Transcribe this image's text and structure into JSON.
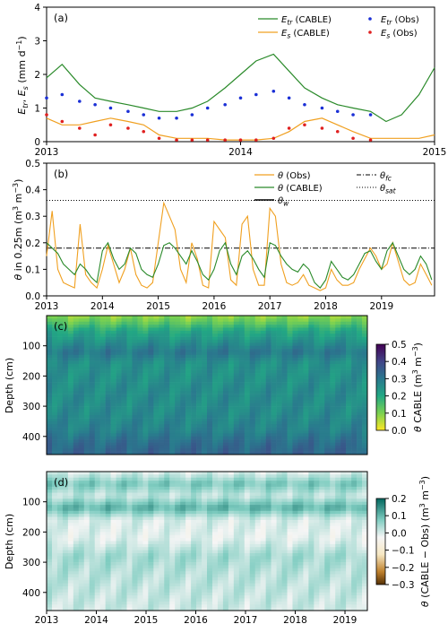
{
  "chart_data": [
    {
      "type": "line",
      "panel_label": "(a)",
      "ylabel": "E_tr, E_s (mm d^-1)",
      "ylim": [
        0,
        4
      ],
      "yticks": [
        0,
        1,
        2,
        3,
        4
      ],
      "xlim": [
        2013,
        2015
      ],
      "xticks": [
        "2013",
        "2014",
        "2015"
      ],
      "legend_position": "top-right",
      "colors": {
        "etr_cable": "#2a8a2a",
        "es_cable": "#f0a020",
        "etr_obs": "#1a2fd6",
        "es_obs": "#e02020"
      },
      "legend": [
        "E_tr (CABLE)",
        "E_s (CABLE)",
        "E_tr (Obs)",
        "E_s (Obs)"
      ],
      "series": [
        {
          "name": "E_tr (CABLE)",
          "style": "line",
          "x": [
            2013.0,
            2013.08,
            2013.17,
            2013.25,
            2013.33,
            2013.42,
            2013.5,
            2013.58,
            2013.67,
            2013.75,
            2013.83,
            2013.92,
            2014.0,
            2014.08,
            2014.17,
            2014.25,
            2014.33,
            2014.42,
            2014.5,
            2014.58,
            2014.67,
            2014.75,
            2014.83,
            2014.92,
            2015.0
          ],
          "values": [
            1.9,
            2.3,
            1.7,
            1.3,
            1.2,
            1.1,
            1.0,
            0.9,
            0.9,
            1.0,
            1.2,
            1.6,
            2.0,
            2.4,
            2.6,
            2.1,
            1.6,
            1.3,
            1.1,
            1.0,
            0.9,
            0.6,
            0.8,
            1.4,
            2.2
          ]
        },
        {
          "name": "E_s (CABLE)",
          "style": "line",
          "x": [
            2013.0,
            2013.08,
            2013.17,
            2013.25,
            2013.33,
            2013.42,
            2013.5,
            2013.58,
            2013.67,
            2013.75,
            2013.83,
            2013.92,
            2014.0,
            2014.08,
            2014.17,
            2014.25,
            2014.33,
            2014.42,
            2014.5,
            2014.58,
            2014.67,
            2014.75,
            2014.83,
            2014.92,
            2015.0
          ],
          "values": [
            0.7,
            0.5,
            0.5,
            0.6,
            0.7,
            0.6,
            0.5,
            0.2,
            0.1,
            0.1,
            0.1,
            0.05,
            0.05,
            0.05,
            0.1,
            0.3,
            0.6,
            0.7,
            0.5,
            0.3,
            0.1,
            0.1,
            0.1,
            0.1,
            0.2
          ]
        },
        {
          "name": "E_tr (Obs)",
          "style": "points",
          "x": [
            2013.0,
            2013.08,
            2013.17,
            2013.25,
            2013.33,
            2013.42,
            2013.5,
            2013.58,
            2013.67,
            2013.75,
            2013.83,
            2013.92,
            2014.0,
            2014.08,
            2014.17,
            2014.25,
            2014.33,
            2014.42,
            2014.5,
            2014.58,
            2014.67
          ],
          "values": [
            1.3,
            1.4,
            1.2,
            1.1,
            1.0,
            0.9,
            0.8,
            0.7,
            0.7,
            0.8,
            1.0,
            1.1,
            1.3,
            1.4,
            1.5,
            1.3,
            1.1,
            1.0,
            0.9,
            0.8,
            0.8
          ]
        },
        {
          "name": "E_s (Obs)",
          "style": "points",
          "x": [
            2013.0,
            2013.08,
            2013.17,
            2013.25,
            2013.33,
            2013.42,
            2013.5,
            2013.58,
            2013.67,
            2013.75,
            2013.83,
            2013.92,
            2014.0,
            2014.08,
            2014.17,
            2014.25,
            2014.33,
            2014.42,
            2014.5,
            2014.58,
            2014.67
          ],
          "values": [
            0.8,
            0.6,
            0.4,
            0.2,
            0.5,
            0.4,
            0.3,
            0.1,
            0.05,
            0.05,
            0.05,
            0.05,
            0.05,
            0.05,
            0.1,
            0.4,
            0.5,
            0.4,
            0.3,
            0.1,
            0.05
          ]
        }
      ]
    },
    {
      "type": "line",
      "panel_label": "(b)",
      "ylabel": "θ in 0.25m (m^3 m^-3)",
      "ylim": [
        0,
        0.5
      ],
      "yticks": [
        0.0,
        0.1,
        0.2,
        0.3,
        0.4,
        0.5
      ],
      "xlim": [
        2013,
        2019.95
      ],
      "xticks": [
        "2013",
        "2014",
        "2015",
        "2016",
        "2017",
        "2018",
        "2019"
      ],
      "legend_position": "top-right",
      "colors": {
        "obs": "#f0a020",
        "cable": "#2a8a2a",
        "ref": "#000000"
      },
      "legend": [
        "θ (Obs)",
        "θ (CABLE)",
        "θ_w",
        "θ_fc",
        "θ_sat"
      ],
      "reference_lines": {
        "θ_fc": 0.18,
        "θ_sat": 0.36
      },
      "series": [
        {
          "name": "θ (Obs)",
          "x": [
            2013.0,
            2013.1,
            2013.2,
            2013.3,
            2013.4,
            2013.5,
            2013.6,
            2013.7,
            2013.8,
            2013.9,
            2014.0,
            2014.1,
            2014.2,
            2014.3,
            2014.4,
            2014.5,
            2014.6,
            2014.7,
            2014.8,
            2014.9,
            2015.0,
            2015.1,
            2015.2,
            2015.3,
            2015.4,
            2015.5,
            2015.6,
            2015.7,
            2015.8,
            2015.9,
            2016.0,
            2016.1,
            2016.2,
            2016.3,
            2016.4,
            2016.5,
            2016.6,
            2016.7,
            2016.8,
            2016.9,
            2017.0,
            2017.1,
            2017.2,
            2017.3,
            2017.4,
            2017.5,
            2017.6,
            2017.7,
            2017.8,
            2017.9,
            2018.0,
            2018.1,
            2018.2,
            2018.3,
            2018.4,
            2018.5,
            2018.6,
            2018.7,
            2018.8,
            2018.9,
            2019.0,
            2019.1,
            2019.2,
            2019.3,
            2019.4,
            2019.5,
            2019.6,
            2019.7,
            2019.8,
            2019.9
          ],
          "values": [
            0.15,
            0.32,
            0.1,
            0.05,
            0.04,
            0.03,
            0.27,
            0.08,
            0.05,
            0.03,
            0.1,
            0.19,
            0.12,
            0.05,
            0.1,
            0.18,
            0.08,
            0.04,
            0.03,
            0.05,
            0.2,
            0.35,
            0.3,
            0.25,
            0.1,
            0.05,
            0.2,
            0.14,
            0.04,
            0.03,
            0.28,
            0.25,
            0.22,
            0.06,
            0.04,
            0.27,
            0.3,
            0.1,
            0.04,
            0.04,
            0.33,
            0.3,
            0.12,
            0.05,
            0.04,
            0.05,
            0.08,
            0.04,
            0.03,
            0.02,
            0.03,
            0.1,
            0.06,
            0.04,
            0.04,
            0.05,
            0.1,
            0.14,
            0.18,
            0.15,
            0.1,
            0.12,
            0.2,
            0.13,
            0.06,
            0.04,
            0.05,
            0.12,
            0.08,
            0.04
          ]
        },
        {
          "name": "θ (CABLE)",
          "x": [
            2013.0,
            2013.1,
            2013.2,
            2013.3,
            2013.4,
            2013.5,
            2013.6,
            2013.7,
            2013.8,
            2013.9,
            2014.0,
            2014.1,
            2014.2,
            2014.3,
            2014.4,
            2014.5,
            2014.6,
            2014.7,
            2014.8,
            2014.9,
            2015.0,
            2015.1,
            2015.2,
            2015.3,
            2015.4,
            2015.5,
            2015.6,
            2015.7,
            2015.8,
            2015.9,
            2016.0,
            2016.1,
            2016.2,
            2016.3,
            2016.4,
            2016.5,
            2016.6,
            2016.7,
            2016.8,
            2016.9,
            2017.0,
            2017.1,
            2017.2,
            2017.3,
            2017.4,
            2017.5,
            2017.6,
            2017.7,
            2017.8,
            2017.9,
            2018.0,
            2018.1,
            2018.2,
            2018.3,
            2018.4,
            2018.5,
            2018.6,
            2018.7,
            2018.8,
            2018.9,
            2019.0,
            2019.1,
            2019.2,
            2019.3,
            2019.4,
            2019.5,
            2019.6,
            2019.7,
            2019.8,
            2019.9
          ],
          "values": [
            0.2,
            0.18,
            0.16,
            0.12,
            0.1,
            0.08,
            0.12,
            0.1,
            0.07,
            0.05,
            0.17,
            0.2,
            0.14,
            0.1,
            0.12,
            0.18,
            0.16,
            0.1,
            0.08,
            0.07,
            0.12,
            0.19,
            0.2,
            0.18,
            0.15,
            0.12,
            0.17,
            0.13,
            0.08,
            0.06,
            0.1,
            0.17,
            0.2,
            0.12,
            0.08,
            0.15,
            0.17,
            0.14,
            0.1,
            0.07,
            0.2,
            0.19,
            0.15,
            0.12,
            0.1,
            0.09,
            0.12,
            0.1,
            0.05,
            0.03,
            0.06,
            0.13,
            0.1,
            0.07,
            0.06,
            0.08,
            0.12,
            0.16,
            0.17,
            0.13,
            0.1,
            0.17,
            0.2,
            0.15,
            0.1,
            0.08,
            0.1,
            0.15,
            0.12,
            0.06
          ]
        }
      ]
    },
    {
      "type": "heatmap",
      "panel_label": "(c)",
      "ylabel": "Depth (cm)",
      "yticks": [
        100,
        200,
        300,
        400
      ],
      "ylim": [
        460,
        0
      ],
      "colorbar_label": "θ CABLE (m^3 m^-3)",
      "colorbar_ticks": [
        "0.0",
        "0.1",
        "0.2",
        "0.3",
        "0.4",
        "0.5"
      ],
      "colorbar_range": [
        0.0,
        0.5
      ],
      "colormap": "viridis_r",
      "depth_profile": {
        "depth_cm": [
          0,
          20,
          50,
          80,
          120,
          160,
          200,
          260,
          320,
          380,
          420,
          460
        ],
        "theta": [
          0.08,
          0.12,
          0.2,
          0.24,
          0.3,
          0.25,
          0.25,
          0.26,
          0.26,
          0.28,
          0.32,
          0.34
        ]
      }
    },
    {
      "type": "heatmap",
      "panel_label": "(d)",
      "ylabel": "Depth (cm)",
      "yticks": [
        100,
        200,
        300,
        400
      ],
      "ylim": [
        460,
        0
      ],
      "xticks": [
        "2013",
        "2014",
        "2015",
        "2016",
        "2017",
        "2018",
        "2019"
      ],
      "colorbar_label": "θ (CABLE − Obs) (m^3 m^-3)",
      "colorbar_ticks": [
        "0.2",
        "0.1",
        "0.0",
        "−0.1",
        "−0.2",
        "−0.3"
      ],
      "colorbar_range": [
        -0.3,
        0.25
      ],
      "colormap": "BrBG",
      "depth_profile": {
        "depth_cm": [
          0,
          40,
          80,
          120,
          160,
          220,
          280,
          340,
          400,
          460
        ],
        "difference": [
          0.02,
          0.12,
          0.05,
          0.15,
          0.03,
          0.02,
          0.08,
          0.06,
          0.05,
          0.04
        ]
      }
    }
  ]
}
